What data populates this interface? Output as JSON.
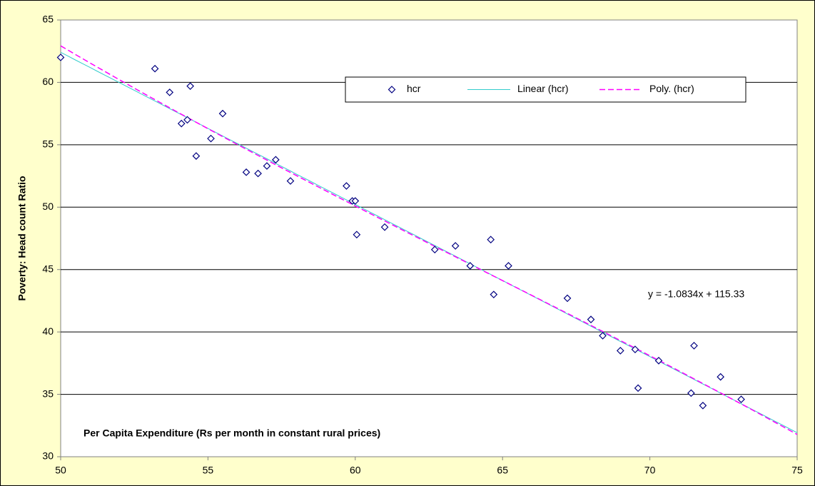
{
  "chart_data": {
    "type": "scatter",
    "xlabel": "Per Capita Expenditure (Rs per month in constant rural prices)",
    "ylabel": "Poverty: Head count Ratio",
    "xlim": [
      50,
      75
    ],
    "xticks": [
      50,
      55,
      60,
      65,
      70,
      75
    ],
    "ylim": [
      30,
      65
    ],
    "yticks": [
      30,
      35,
      40,
      45,
      50,
      55,
      60,
      65
    ],
    "grid": true,
    "series": [
      {
        "name": "hcr",
        "color": "#000080",
        "x": [
          50.0,
          53.2,
          53.7,
          54.4,
          54.1,
          54.3,
          54.6,
          55.1,
          55.5,
          56.3,
          56.7,
          57.0,
          57.3,
          57.8,
          59.7,
          59.9,
          60.0,
          60.05,
          61.0,
          62.7,
          63.4,
          63.9,
          64.6,
          64.7,
          65.2,
          67.2,
          68.0,
          68.4,
          69.0,
          69.5,
          69.6,
          70.3,
          71.5,
          71.4,
          71.8,
          72.4,
          73.1
        ],
        "values": [
          62.0,
          61.1,
          59.2,
          59.7,
          56.7,
          57.0,
          54.1,
          55.5,
          57.5,
          52.8,
          52.7,
          53.3,
          53.8,
          52.1,
          51.7,
          50.5,
          50.5,
          47.8,
          48.4,
          46.6,
          46.9,
          45.3,
          47.4,
          43.0,
          45.3,
          42.7,
          41.0,
          39.7,
          38.5,
          38.6,
          35.5,
          37.7,
          38.9,
          35.1,
          34.1,
          36.4,
          34.6
        ]
      }
    ],
    "trendlines": [
      {
        "name": "Linear (hcr)",
        "color": "#33cccc",
        "kind": "linear"
      },
      {
        "name": "Poly. (hcr)",
        "color": "#ff00ff",
        "kind": "poly",
        "order": 3
      }
    ],
    "annotation": "y = -1.0834x + 115.33"
  }
}
